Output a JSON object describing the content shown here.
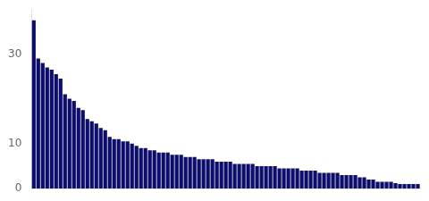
{
  "chart_data": {
    "type": "bar",
    "categories": [
      null,
      null,
      null,
      null,
      null,
      null,
      null,
      null,
      null,
      null,
      null,
      null,
      null,
      null,
      null,
      null,
      null,
      null,
      null,
      null,
      null,
      null,
      null,
      null,
      null,
      null,
      null,
      null,
      null,
      null,
      null,
      null,
      null,
      null,
      null,
      null,
      null,
      null,
      null,
      null,
      null,
      null,
      null,
      null,
      null,
      null,
      null,
      null,
      null,
      null,
      null,
      null,
      null,
      null,
      null,
      null,
      null,
      null,
      null,
      null,
      null,
      null,
      null,
      null,
      null,
      null,
      null,
      null,
      null,
      null,
      null,
      null,
      null,
      null,
      null,
      null,
      null,
      null,
      null,
      null,
      null,
      null,
      null,
      null,
      null,
      null,
      null
    ],
    "values": [
      37.5,
      29.0,
      28.0,
      27.0,
      26.5,
      25.5,
      24.5,
      21.0,
      20.0,
      19.5,
      18.0,
      17.5,
      15.5,
      15.0,
      14.5,
      13.5,
      13.0,
      11.5,
      11.0,
      11.0,
      10.5,
      10.5,
      10.0,
      9.5,
      9.0,
      9.0,
      8.5,
      8.5,
      8.0,
      8.0,
      8.0,
      7.5,
      7.5,
      7.5,
      7.0,
      7.0,
      7.0,
      6.5,
      6.5,
      6.5,
      6.5,
      6.0,
      6.0,
      6.0,
      6.0,
      5.5,
      5.5,
      5.5,
      5.5,
      5.5,
      5.0,
      5.0,
      5.0,
      5.0,
      5.0,
      4.5,
      4.5,
      4.5,
      4.5,
      4.5,
      4.0,
      4.0,
      4.0,
      4.0,
      3.5,
      3.5,
      3.5,
      3.5,
      3.5,
      3.0,
      3.0,
      3.0,
      3.0,
      2.5,
      2.5,
      2.0,
      2.0,
      1.5,
      1.5,
      1.5,
      1.5,
      1.2,
      1.0,
      1.0,
      1.0,
      1.0,
      1.0
    ],
    "color": "#0d0d6b",
    "ylim": [
      0,
      40
    ],
    "yticks": [
      0,
      10,
      30
    ],
    "grid": false,
    "tick_labels": "y"
  }
}
